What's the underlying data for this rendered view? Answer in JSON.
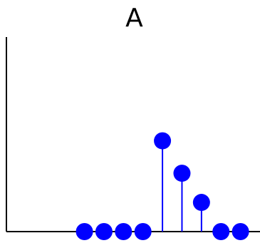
{
  "chart_data": {
    "type": "stem",
    "title": "A",
    "xlabel": "",
    "ylabel": "",
    "grid": false,
    "legend": "none",
    "colors": {
      "marker": "#0000ff",
      "stem": "#0000ff",
      "axis": "#000000"
    },
    "xlim": [
      -2,
      11
    ],
    "ylim": [
      0,
      3
    ],
    "x": [
      2,
      3,
      4,
      5,
      6,
      7,
      8,
      9,
      10
    ],
    "y": [
      0,
      0,
      0,
      0,
      1.4,
      0.9,
      0.45,
      0,
      0
    ]
  }
}
